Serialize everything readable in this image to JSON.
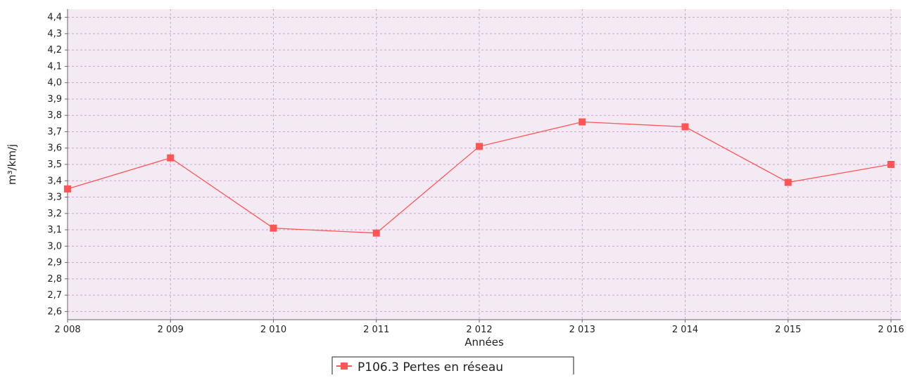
{
  "chart_data": {
    "type": "line",
    "title": "",
    "xlabel": "Années",
    "ylabel": "m³/km/j",
    "x": [
      "2 008",
      "2 009",
      "2 010",
      "2 011",
      "2 012",
      "2 013",
      "2 014",
      "2 015",
      "2 016"
    ],
    "ylim": [
      2.55,
      4.45
    ],
    "y_ticks": [
      "2,6",
      "2,7",
      "2,8",
      "2,9",
      "3,0",
      "3,1",
      "3,2",
      "3,3",
      "3,4",
      "3,5",
      "3,6",
      "3,7",
      "3,8",
      "3,9",
      "4,0",
      "4,1",
      "4,2",
      "4,3",
      "4,4"
    ],
    "grid": true,
    "legend_position": "bottom",
    "series": [
      {
        "name": "P106.3 Pertes en réseau",
        "color": "#ff5555",
        "marker": "square",
        "values": [
          3.35,
          3.54,
          3.11,
          3.08,
          3.61,
          3.76,
          3.73,
          3.39,
          3.5
        ]
      }
    ],
    "plot_background": "#f3eaf3",
    "grid_color": "#c9a6d3"
  }
}
